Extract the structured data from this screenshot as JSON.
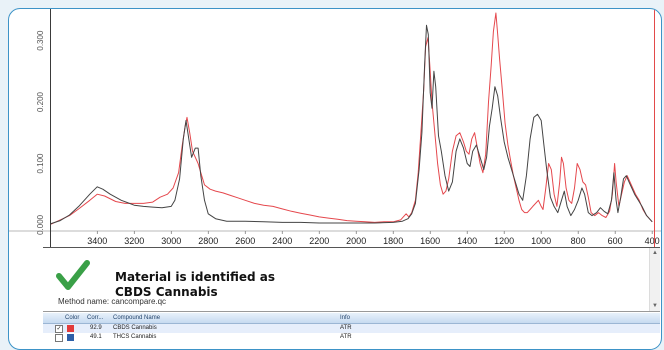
{
  "chart_data": {
    "type": "line",
    "xlabel": "",
    "ylabel": "",
    "xlim": [
      3650,
      390
    ],
    "ylim": [
      -0.01,
      0.345
    ],
    "x_ticks": [
      3400,
      3200,
      3000,
      2800,
      2600,
      2400,
      2200,
      2000,
      1800,
      1600,
      1400,
      1200,
      1000,
      800,
      600,
      400
    ],
    "y_ticks": [
      "0.000",
      "0.100",
      "0.200",
      "0.300"
    ],
    "series": [
      {
        "color": "#444444",
        "points": [
          [
            3650,
            0.002
          ],
          [
            3600,
            0.007
          ],
          [
            3550,
            0.016
          ],
          [
            3500,
            0.03
          ],
          [
            3440,
            0.05
          ],
          [
            3400,
            0.062
          ],
          [
            3370,
            0.058
          ],
          [
            3330,
            0.05
          ],
          [
            3270,
            0.04
          ],
          [
            3200,
            0.032
          ],
          [
            3150,
            0.03
          ],
          [
            3100,
            0.029
          ],
          [
            3050,
            0.028
          ],
          [
            3000,
            0.03
          ],
          [
            2980,
            0.04
          ],
          [
            2955,
            0.075
          ],
          [
            2935,
            0.14
          ],
          [
            2920,
            0.17
          ],
          [
            2905,
            0.14
          ],
          [
            2890,
            0.11
          ],
          [
            2870,
            0.125
          ],
          [
            2855,
            0.125
          ],
          [
            2840,
            0.08
          ],
          [
            2820,
            0.04
          ],
          [
            2800,
            0.018
          ],
          [
            2760,
            0.01
          ],
          [
            2700,
            0.006
          ],
          [
            2600,
            0.006
          ],
          [
            2500,
            0.005
          ],
          [
            2400,
            0.004
          ],
          [
            2300,
            0.004
          ],
          [
            2200,
            0.003
          ],
          [
            2100,
            0.003
          ],
          [
            2000,
            0.003
          ],
          [
            1900,
            0.003
          ],
          [
            1800,
            0.004
          ],
          [
            1750,
            0.006
          ],
          [
            1720,
            0.01
          ],
          [
            1700,
            0.018
          ],
          [
            1680,
            0.035
          ],
          [
            1660,
            0.09
          ],
          [
            1645,
            0.15
          ],
          [
            1630,
            0.26
          ],
          [
            1620,
            0.325
          ],
          [
            1610,
            0.31
          ],
          [
            1600,
            0.215
          ],
          [
            1590,
            0.19
          ],
          [
            1580,
            0.25
          ],
          [
            1570,
            0.225
          ],
          [
            1555,
            0.145
          ],
          [
            1540,
            0.12
          ],
          [
            1520,
            0.08
          ],
          [
            1500,
            0.055
          ],
          [
            1480,
            0.07
          ],
          [
            1460,
            0.12
          ],
          [
            1440,
            0.14
          ],
          [
            1420,
            0.125
          ],
          [
            1400,
            0.1
          ],
          [
            1385,
            0.095
          ],
          [
            1370,
            0.12
          ],
          [
            1350,
            0.13
          ],
          [
            1330,
            0.11
          ],
          [
            1310,
            0.09
          ],
          [
            1295,
            0.11
          ],
          [
            1280,
            0.16
          ],
          [
            1265,
            0.19
          ],
          [
            1250,
            0.225
          ],
          [
            1235,
            0.21
          ],
          [
            1220,
            0.175
          ],
          [
            1200,
            0.135
          ],
          [
            1180,
            0.11
          ],
          [
            1160,
            0.09
          ],
          [
            1140,
            0.07
          ],
          [
            1120,
            0.05
          ],
          [
            1100,
            0.04
          ],
          [
            1080,
            0.08
          ],
          [
            1060,
            0.14
          ],
          [
            1040,
            0.175
          ],
          [
            1020,
            0.18
          ],
          [
            1000,
            0.17
          ],
          [
            985,
            0.13
          ],
          [
            970,
            0.09
          ],
          [
            950,
            0.045
          ],
          [
            930,
            0.03
          ],
          [
            910,
            0.02
          ],
          [
            890,
            0.04
          ],
          [
            875,
            0.055
          ],
          [
            860,
            0.03
          ],
          [
            840,
            0.015
          ],
          [
            820,
            0.025
          ],
          [
            800,
            0.04
          ],
          [
            780,
            0.06
          ],
          [
            765,
            0.05
          ],
          [
            745,
            0.02
          ],
          [
            725,
            0.015
          ],
          [
            700,
            0.02
          ],
          [
            680,
            0.028
          ],
          [
            660,
            0.022
          ],
          [
            640,
            0.018
          ],
          [
            620,
            0.04
          ],
          [
            607,
            0.085
          ],
          [
            595,
            0.04
          ],
          [
            585,
            0.02
          ],
          [
            570,
            0.045
          ],
          [
            555,
            0.075
          ],
          [
            540,
            0.08
          ],
          [
            525,
            0.07
          ],
          [
            510,
            0.06
          ],
          [
            495,
            0.05
          ],
          [
            475,
            0.04
          ],
          [
            455,
            0.03
          ],
          [
            430,
            0.015
          ],
          [
            400,
            0.005
          ]
        ]
      },
      {
        "color": "#e5484d",
        "points": [
          [
            3650,
            0.001
          ],
          [
            3600,
            0.008
          ],
          [
            3550,
            0.015
          ],
          [
            3500,
            0.026
          ],
          [
            3440,
            0.04
          ],
          [
            3400,
            0.05
          ],
          [
            3360,
            0.047
          ],
          [
            3300,
            0.038
          ],
          [
            3250,
            0.035
          ],
          [
            3200,
            0.035
          ],
          [
            3150,
            0.035
          ],
          [
            3100,
            0.037
          ],
          [
            3060,
            0.045
          ],
          [
            3020,
            0.05
          ],
          [
            2990,
            0.06
          ],
          [
            2960,
            0.085
          ],
          [
            2940,
            0.13
          ],
          [
            2925,
            0.16
          ],
          [
            2915,
            0.175
          ],
          [
            2900,
            0.15
          ],
          [
            2885,
            0.12
          ],
          [
            2870,
            0.11
          ],
          [
            2855,
            0.1
          ],
          [
            2840,
            0.085
          ],
          [
            2820,
            0.065
          ],
          [
            2790,
            0.058
          ],
          [
            2760,
            0.055
          ],
          [
            2720,
            0.052
          ],
          [
            2680,
            0.048
          ],
          [
            2640,
            0.044
          ],
          [
            2600,
            0.04
          ],
          [
            2550,
            0.035
          ],
          [
            2500,
            0.032
          ],
          [
            2450,
            0.03
          ],
          [
            2400,
            0.026
          ],
          [
            2350,
            0.022
          ],
          [
            2300,
            0.019
          ],
          [
            2250,
            0.016
          ],
          [
            2200,
            0.013
          ],
          [
            2150,
            0.011
          ],
          [
            2100,
            0.009
          ],
          [
            2050,
            0.007
          ],
          [
            2000,
            0.006
          ],
          [
            1950,
            0.005
          ],
          [
            1900,
            0.004
          ],
          [
            1850,
            0.005
          ],
          [
            1800,
            0.005
          ],
          [
            1760,
            0.008
          ],
          [
            1730,
            0.018
          ],
          [
            1715,
            0.013
          ],
          [
            1700,
            0.02
          ],
          [
            1680,
            0.04
          ],
          [
            1665,
            0.085
          ],
          [
            1650,
            0.15
          ],
          [
            1635,
            0.22
          ],
          [
            1625,
            0.29
          ],
          [
            1612,
            0.305
          ],
          [
            1600,
            0.25
          ],
          [
            1590,
            0.2
          ],
          [
            1575,
            0.15
          ],
          [
            1560,
            0.1
          ],
          [
            1545,
            0.065
          ],
          [
            1530,
            0.05
          ],
          [
            1515,
            0.055
          ],
          [
            1500,
            0.075
          ],
          [
            1480,
            0.12
          ],
          [
            1460,
            0.145
          ],
          [
            1440,
            0.15
          ],
          [
            1420,
            0.135
          ],
          [
            1405,
            0.12
          ],
          [
            1390,
            0.115
          ],
          [
            1375,
            0.14
          ],
          [
            1360,
            0.15
          ],
          [
            1345,
            0.125
          ],
          [
            1330,
            0.1
          ],
          [
            1315,
            0.085
          ],
          [
            1300,
            0.115
          ],
          [
            1285,
            0.2
          ],
          [
            1270,
            0.26
          ],
          [
            1258,
            0.315
          ],
          [
            1245,
            0.345
          ],
          [
            1235,
            0.31
          ],
          [
            1225,
            0.27
          ],
          [
            1210,
            0.22
          ],
          [
            1195,
            0.165
          ],
          [
            1180,
            0.13
          ],
          [
            1165,
            0.105
          ],
          [
            1150,
            0.08
          ],
          [
            1135,
            0.06
          ],
          [
            1120,
            0.04
          ],
          [
            1105,
            0.025
          ],
          [
            1090,
            0.02
          ],
          [
            1075,
            0.02
          ],
          [
            1060,
            0.025
          ],
          [
            1045,
            0.03
          ],
          [
            1030,
            0.035
          ],
          [
            1015,
            0.04
          ],
          [
            1000,
            0.03
          ],
          [
            990,
            0.025
          ],
          [
            975,
            0.06
          ],
          [
            960,
            0.1
          ],
          [
            945,
            0.09
          ],
          [
            930,
            0.05
          ],
          [
            915,
            0.03
          ],
          [
            900,
            0.07
          ],
          [
            890,
            0.11
          ],
          [
            880,
            0.1
          ],
          [
            865,
            0.06
          ],
          [
            850,
            0.04
          ],
          [
            835,
            0.035
          ],
          [
            820,
            0.06
          ],
          [
            805,
            0.1
          ],
          [
            790,
            0.09
          ],
          [
            775,
            0.07
          ],
          [
            760,
            0.065
          ],
          [
            745,
            0.045
          ],
          [
            730,
            0.02
          ],
          [
            710,
            0.015
          ],
          [
            690,
            0.02
          ],
          [
            670,
            0.015
          ],
          [
            650,
            0.012
          ],
          [
            630,
            0.022
          ],
          [
            615,
            0.05
          ],
          [
            603,
            0.1
          ],
          [
            595,
            0.07
          ],
          [
            580,
            0.03
          ],
          [
            565,
            0.05
          ],
          [
            550,
            0.07
          ],
          [
            535,
            0.08
          ],
          [
            520,
            0.07
          ],
          [
            505,
            0.06
          ],
          [
            490,
            0.05
          ],
          [
            470,
            0.04
          ],
          [
            450,
            0.025
          ],
          [
            430,
            0.015
          ],
          [
            400,
            0.005
          ]
        ]
      }
    ]
  },
  "result": {
    "line1": "Material is identified as",
    "line2": "CBDS Cannabis",
    "method": "Method name: cancompare.qc"
  },
  "table": {
    "headers": {
      "color": "Color",
      "corr": "Corr...",
      "name": "Compound Name",
      "info": "Info"
    },
    "rows": [
      {
        "checked": "✓",
        "color": "#e23b3b",
        "corr": "92.9",
        "name": "CBDS Cannabis",
        "info": "ATR"
      },
      {
        "checked": "",
        "color": "#2d5fa8",
        "corr": "49.1",
        "name": "THCS Cannabis",
        "info": "ATR"
      }
    ]
  }
}
